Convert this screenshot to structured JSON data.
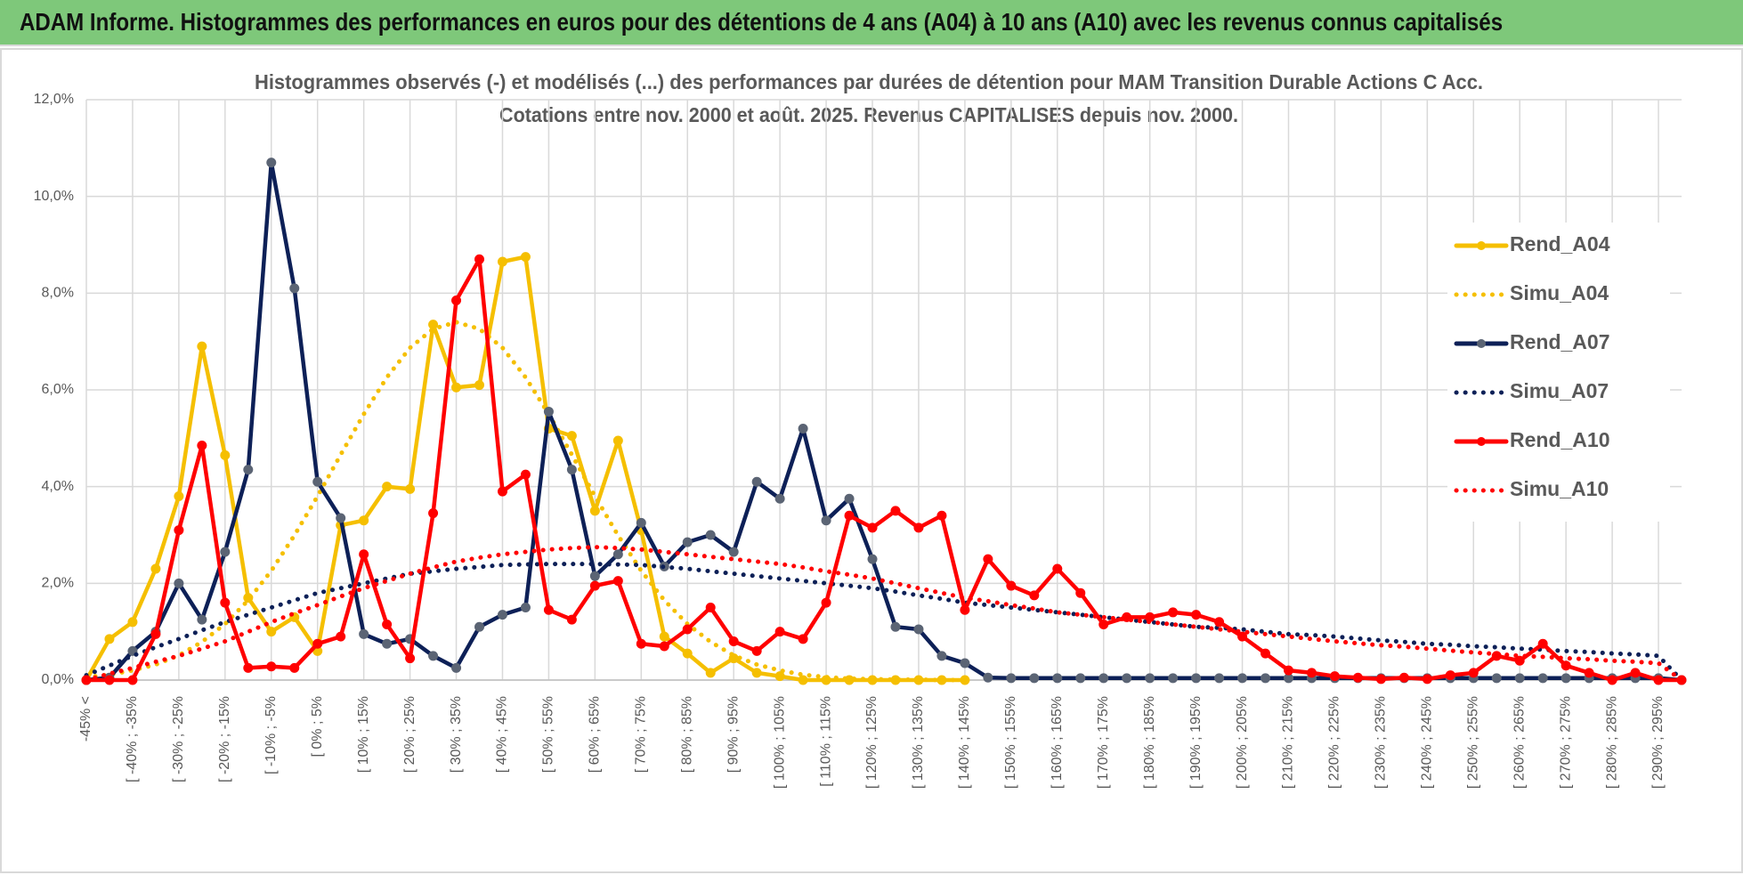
{
  "header": {
    "title": "ADAM Informe. Histogrammes des performances en euros pour des détentions de 4 ans (A04) à 10 ans (A10) avec les revenus connus capitalisés"
  },
  "chart_data": {
    "type": "line",
    "title": [
      "Histogrammes observés (-) et modélisés (...) des performances par durées de détention pour MAM Transition Durable Actions C Acc.",
      "Cotations entre nov. 2000 et août. 2025. Revenus CAPITALISES depuis nov. 2000."
    ],
    "categories": [
      "-45% <",
      null,
      "[ -40% ; -35%",
      null,
      "[ -30% ; -25%",
      null,
      "[ -20% ; -15%",
      null,
      "[ -10% ; -5%",
      null,
      "[ 0% ; 5%",
      null,
      "[ 10% ; 15%",
      null,
      "[ 20% ; 25%",
      null,
      "[ 30% ; 35%",
      null,
      "[ 40% ; 45%",
      null,
      "[ 50% ; 55%",
      null,
      "[ 60% ; 65%",
      null,
      "[ 70% ; 75%",
      null,
      "[ 80% ; 85%",
      null,
      "[ 90% ; 95%",
      null,
      "[ 100% ; 105%",
      null,
      "[ 110% ; 115%",
      null,
      "[ 120% ; 125%",
      null,
      "[ 130% ; 135%",
      null,
      "[ 140% ; 145%",
      null,
      "[ 150% ; 155%",
      null,
      "[ 160% ; 165%",
      null,
      "[ 170% ; 175%",
      null,
      "[ 180% ; 185%",
      null,
      "[ 190% ; 195%",
      null,
      "[ 200% ; 205%",
      null,
      "[ 210% ; 215%",
      null,
      "[ 220% ; 225%",
      null,
      "[ 230% ; 235%",
      null,
      "[ 240% ; 245%",
      null,
      "[ 250% ; 255%",
      null,
      "[ 260% ; 265%",
      null,
      "[ 270% ; 275%",
      null,
      "[ 280% ; 285%",
      null,
      "[ 290% ; 295%",
      null
    ],
    "series": [
      {
        "name": "Rend_A04",
        "color": "#f5bf00",
        "dashed": false,
        "marker_color": "#f5bf00",
        "values": [
          0,
          0.85,
          1.2,
          2.3,
          3.8,
          6.9,
          4.65,
          1.7,
          1.0,
          1.3,
          0.6,
          3.2,
          3.3,
          4.0,
          3.95,
          7.35,
          6.05,
          6.1,
          8.65,
          8.75,
          5.2,
          5.05,
          3.5,
          4.95,
          3.1,
          0.9,
          0.55,
          0.15,
          0.45,
          0.15,
          0.08,
          0,
          0,
          0,
          0,
          0,
          0,
          0,
          0,
          null,
          null,
          null,
          null,
          null,
          null,
          null,
          null,
          null,
          null,
          null,
          null,
          null,
          null,
          null,
          null,
          null,
          null,
          null,
          null,
          null,
          null,
          null,
          null,
          null,
          null,
          null,
          null,
          null,
          null,
          null
        ]
      },
      {
        "name": "Simu_A04",
        "color": "#f5bf00",
        "dashed": true,
        "values": [
          0.06,
          0.11,
          0.2,
          0.32,
          0.51,
          0.79,
          1.16,
          1.65,
          2.26,
          2.99,
          3.8,
          4.66,
          5.5,
          6.26,
          6.87,
          7.26,
          7.4,
          7.26,
          6.87,
          6.26,
          5.5,
          4.66,
          3.8,
          2.99,
          2.26,
          1.65,
          1.16,
          0.79,
          0.51,
          0.32,
          0.2,
          0.11,
          0.06,
          0.03,
          0.02,
          0.01,
          0.01,
          0,
          0,
          null,
          null,
          null,
          null,
          null,
          null,
          null,
          null,
          null,
          null,
          null,
          null,
          null,
          null,
          null,
          null,
          null,
          null,
          null,
          null,
          null,
          null,
          null,
          null,
          null,
          null,
          null,
          null,
          null,
          null,
          null
        ]
      },
      {
        "name": "Rend_A07",
        "color": "#0d2057",
        "dashed": false,
        "marker_color": "#5b6474",
        "values": [
          0,
          0.05,
          0.6,
          1.0,
          2.0,
          1.25,
          2.65,
          4.35,
          10.7,
          8.1,
          4.1,
          3.35,
          0.95,
          0.75,
          0.85,
          0.5,
          0.25,
          1.1,
          1.35,
          1.5,
          5.55,
          4.35,
          2.15,
          2.6,
          3.25,
          2.35,
          2.85,
          3.0,
          2.65,
          4.1,
          3.75,
          5.2,
          3.3,
          3.75,
          2.5,
          1.1,
          1.05,
          0.5,
          0.35,
          0.05,
          0.04,
          0.04,
          0.04,
          0.04,
          0.04,
          0.04,
          0.04,
          0.04,
          0.04,
          0.04,
          0.04,
          0.04,
          0.04,
          0.04,
          0.04,
          0.04,
          0.04,
          0.04,
          0.04,
          0.04,
          0.04,
          0.04,
          0.04,
          0.04,
          0.04,
          0.04,
          0.04,
          0.04,
          0.04,
          0
        ]
      },
      {
        "name": "Simu_A07",
        "color": "#0d2057",
        "dashed": true,
        "values": [
          0.1,
          0.3,
          0.5,
          0.68,
          0.85,
          1.03,
          1.2,
          1.35,
          1.5,
          1.65,
          1.8,
          1.9,
          2.0,
          2.1,
          2.2,
          2.25,
          2.3,
          2.34,
          2.38,
          2.39,
          2.4,
          2.4,
          2.4,
          2.39,
          2.38,
          2.34,
          2.3,
          2.25,
          2.2,
          2.15,
          2.1,
          2.05,
          2.0,
          1.95,
          1.9,
          1.83,
          1.75,
          1.68,
          1.6,
          1.55,
          1.5,
          1.45,
          1.4,
          1.35,
          1.3,
          1.25,
          1.2,
          1.15,
          1.1,
          1.08,
          1.05,
          1.0,
          0.95,
          0.93,
          0.9,
          0.86,
          0.82,
          0.79,
          0.75,
          0.73,
          0.7,
          0.68,
          0.65,
          0.63,
          0.6,
          0.58,
          0.55,
          0.53,
          0.5,
          0
        ]
      },
      {
        "name": "Rend_A10",
        "color": "#ff0000",
        "dashed": false,
        "marker_color": "#ff0000",
        "values": [
          0,
          0,
          0,
          0.95,
          3.1,
          4.85,
          1.6,
          0.25,
          0.28,
          0.25,
          0.75,
          0.9,
          2.6,
          1.15,
          0.45,
          3.45,
          7.85,
          8.7,
          3.9,
          4.25,
          1.45,
          1.25,
          1.95,
          2.05,
          0.75,
          0.7,
          1.05,
          1.5,
          0.8,
          0.6,
          1.0,
          0.85,
          1.6,
          3.4,
          3.15,
          3.5,
          3.15,
          3.4,
          1.45,
          2.5,
          1.95,
          1.75,
          2.3,
          1.8,
          1.15,
          1.3,
          1.3,
          1.4,
          1.35,
          1.2,
          0.9,
          0.55,
          0.2,
          0.15,
          0.08,
          0.05,
          0.02,
          0.05,
          0.02,
          0.1,
          0.15,
          0.5,
          0.4,
          0.75,
          0.3,
          0.15,
          0,
          0.15,
          0,
          0
        ]
      },
      {
        "name": "Simu_A10",
        "color": "#ff0000",
        "dashed": true,
        "values": [
          0,
          0.13,
          0.25,
          0.38,
          0.5,
          0.65,
          0.8,
          1.0,
          1.2,
          1.38,
          1.55,
          1.73,
          1.9,
          2.05,
          2.2,
          2.33,
          2.45,
          2.53,
          2.6,
          2.65,
          2.7,
          2.73,
          2.75,
          2.73,
          2.7,
          2.65,
          2.6,
          2.55,
          2.5,
          2.45,
          2.4,
          2.33,
          2.25,
          2.18,
          2.1,
          2.0,
          1.9,
          1.8,
          1.7,
          1.63,
          1.55,
          1.48,
          1.4,
          1.35,
          1.3,
          1.25,
          1.2,
          1.15,
          1.1,
          1.05,
          1.0,
          0.95,
          0.9,
          0.85,
          0.8,
          0.76,
          0.72,
          0.69,
          0.65,
          0.61,
          0.57,
          0.54,
          0.5,
          0.48,
          0.45,
          0.43,
          0.4,
          0.38,
          0.35,
          0
        ]
      }
    ],
    "ylim": [
      0,
      12
    ],
    "yticks": [
      {
        "value": 0,
        "label": "0,0%"
      },
      {
        "value": 2,
        "label": "2,0%"
      },
      {
        "value": 4,
        "label": "4,0%"
      },
      {
        "value": 6,
        "label": "6,0%"
      },
      {
        "value": 8,
        "label": "8,0%"
      },
      {
        "value": 10,
        "label": "10,0%"
      },
      {
        "value": 12,
        "label": "12,0%"
      }
    ],
    "grid": true,
    "legend": "right"
  }
}
